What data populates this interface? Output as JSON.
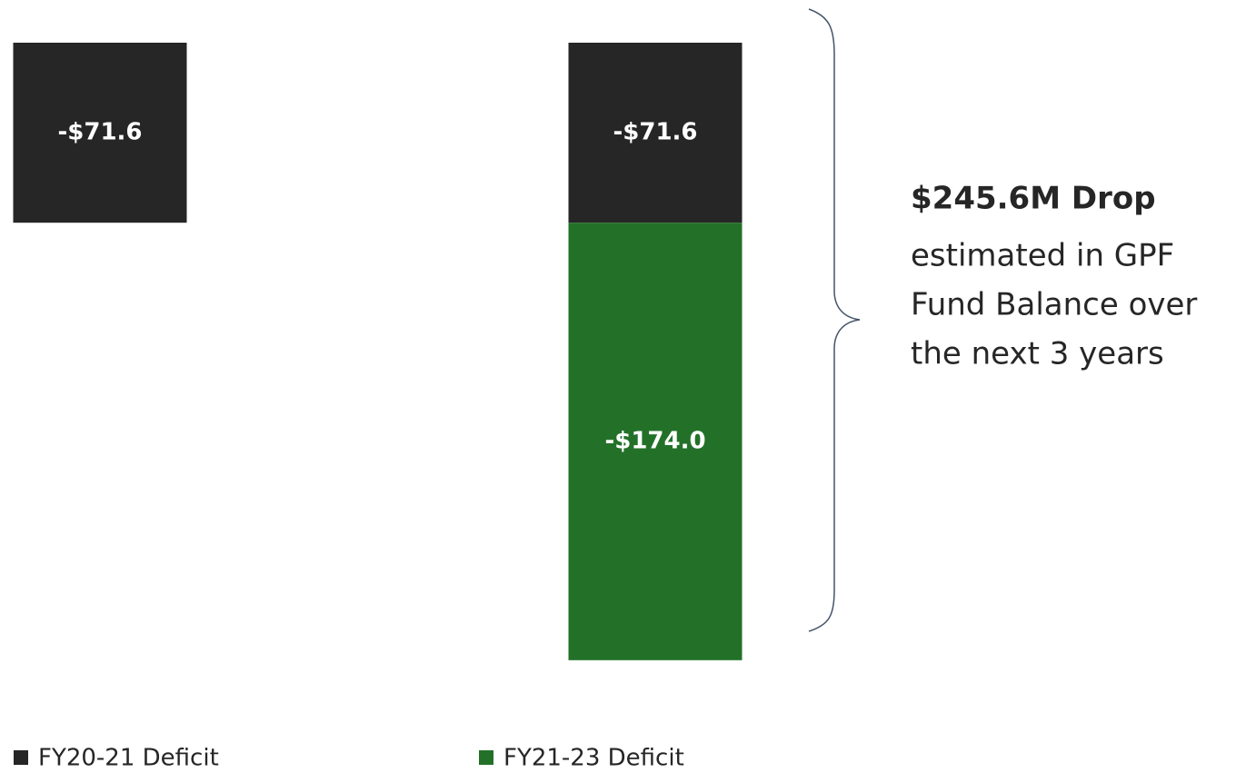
{
  "chart_data": {
    "type": "stacked_bar",
    "categories": [
      null,
      null
    ],
    "series": [
      {
        "name": "FY20-21 Deficit",
        "color": "#262626",
        "values": [
          -71.6,
          -71.6
        ],
        "value_labels": [
          "-$71.6",
          "-$71.6"
        ]
      },
      {
        "name": "FY21-23 Deficit",
        "color": "#237129",
        "values": [
          null,
          -174.0
        ],
        "value_labels": [
          null,
          "-$174.0"
        ]
      }
    ],
    "ylim": [
      -250,
      0
    ],
    "legend": "bottom",
    "annotation": {
      "title": "$245.6M Drop",
      "lines": [
        "estimated in GPF",
        "Fund Balance over",
        "the next 3 years"
      ]
    }
  }
}
